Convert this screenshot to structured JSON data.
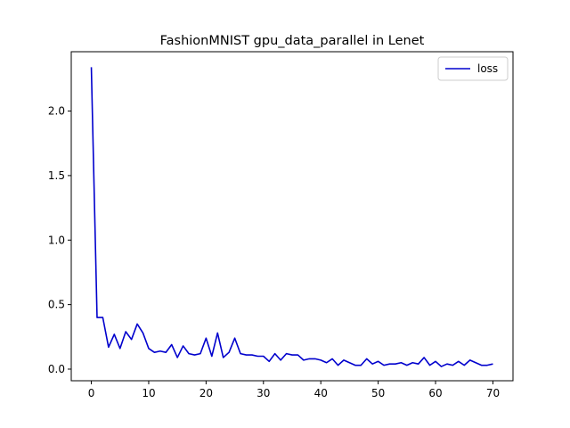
{
  "chart_data": {
    "type": "line",
    "title": "FashionMNIST gpu_data_parallel in Lenet",
    "xlabel": "",
    "ylabel": "",
    "xlim": [
      -3.5,
      73.5
    ],
    "ylim": [
      -0.09,
      2.46
    ],
    "xticks": [
      0,
      10,
      20,
      30,
      40,
      50,
      60,
      70
    ],
    "yticks": [
      0.0,
      0.5,
      1.0,
      1.5,
      2.0
    ],
    "ytick_labels": [
      "0.0",
      "0.5",
      "1.0",
      "1.5",
      "2.0"
    ],
    "grid": false,
    "legend": "top-right",
    "series": [
      {
        "name": "loss",
        "color": "#0000cd",
        "x": [
          0,
          1,
          2,
          3,
          4,
          5,
          6,
          7,
          8,
          9,
          10,
          11,
          12,
          13,
          14,
          15,
          16,
          17,
          18,
          19,
          20,
          21,
          22,
          23,
          24,
          25,
          26,
          27,
          28,
          29,
          30,
          31,
          32,
          33,
          34,
          35,
          36,
          37,
          38,
          39,
          40,
          41,
          42,
          43,
          44,
          45,
          46,
          47,
          48,
          49,
          50,
          51,
          52,
          53,
          54,
          55,
          56,
          57,
          58,
          59,
          60,
          61,
          62,
          63,
          64,
          65,
          66,
          67,
          68,
          69,
          70
        ],
        "values": [
          2.34,
          0.4,
          0.4,
          0.17,
          0.27,
          0.16,
          0.29,
          0.23,
          0.35,
          0.28,
          0.16,
          0.13,
          0.14,
          0.13,
          0.19,
          0.09,
          0.18,
          0.12,
          0.11,
          0.12,
          0.24,
          0.1,
          0.28,
          0.09,
          0.13,
          0.24,
          0.12,
          0.11,
          0.11,
          0.1,
          0.1,
          0.06,
          0.12,
          0.07,
          0.12,
          0.11,
          0.11,
          0.07,
          0.08,
          0.08,
          0.07,
          0.05,
          0.08,
          0.03,
          0.07,
          0.05,
          0.03,
          0.03,
          0.08,
          0.04,
          0.06,
          0.03,
          0.04,
          0.04,
          0.05,
          0.03,
          0.05,
          0.04,
          0.09,
          0.03,
          0.06,
          0.02,
          0.04,
          0.03,
          0.06,
          0.03,
          0.07,
          0.05,
          0.03,
          0.03,
          0.04
        ]
      }
    ]
  }
}
